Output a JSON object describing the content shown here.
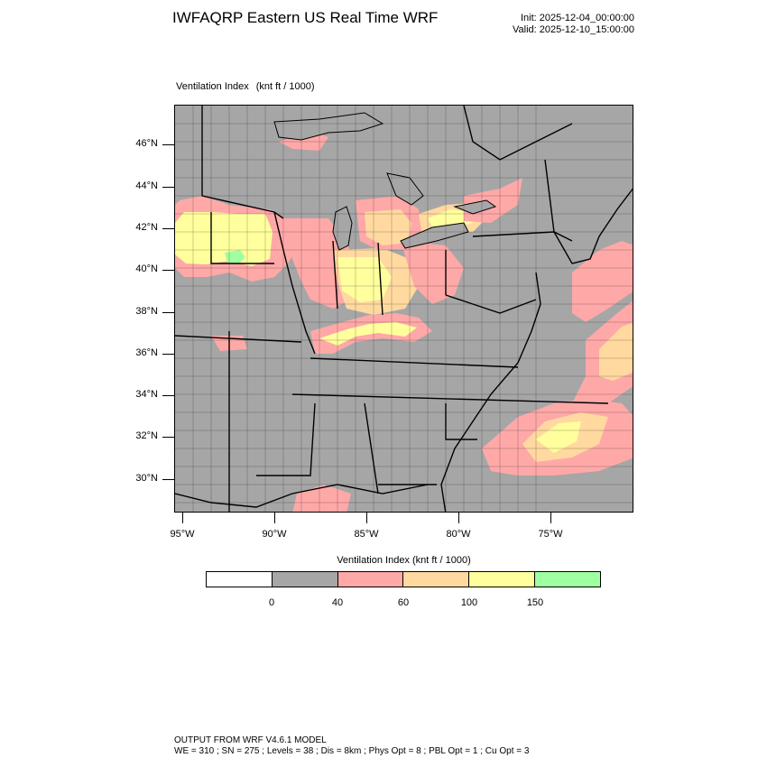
{
  "header": {
    "title": "IWFAQRP Eastern US Real Time WRF",
    "init": "Init: 2025-12-04_00:00:00",
    "valid": "Valid: 2025-12-10_15:00:00"
  },
  "field": {
    "name": "Ventilation Index",
    "units": "(knt ft / 1000)"
  },
  "map": {
    "lat_labels": [
      "46°N",
      "44°N",
      "42°N",
      "40°N",
      "38°N",
      "36°N",
      "34°N",
      "32°N",
      "30°N"
    ],
    "lon_labels": [
      "95°W",
      "90°W",
      "85°W",
      "80°W",
      "75°W"
    ],
    "background_color": "#a6a6a6"
  },
  "legend": {
    "title": "Ventilation Index  (knt ft / 1000)",
    "colors": [
      "#ffffff",
      "#a6a6a6",
      "#ffa8a8",
      "#ffd9a0",
      "#ffff9e",
      "#a0ffa0"
    ],
    "ticks": [
      "0",
      "40",
      "60",
      "100",
      "150"
    ]
  },
  "footer": {
    "line1": "OUTPUT FROM WRF V4.6.1 MODEL",
    "line2": "WE = 310 ; SN = 275 ; Levels = 38 ; Dis = 8km ; Phys Opt = 8 ; PBL Opt = 1 ; Cu Opt = 3"
  }
}
